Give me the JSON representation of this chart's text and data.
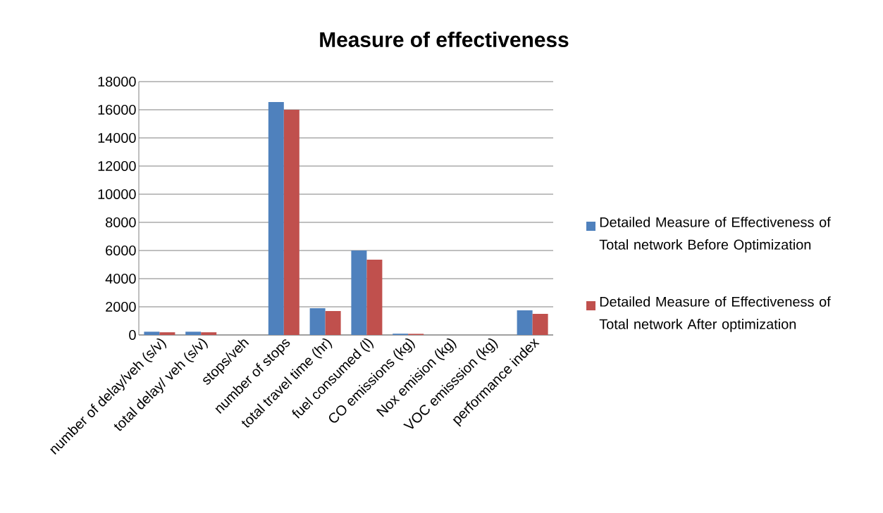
{
  "chart_data": {
    "type": "bar",
    "title": "Measure of effectiveness",
    "categories": [
      "number of delay/veh (s/v)",
      "total delay/ veh (s/v)",
      "stops/veh",
      "number of stops",
      "total travel time (hr)",
      "fuel consumed (l)",
      "CO emissions (kg)",
      "Nox emision (kg)",
      "VOC emisssion (kg)",
      "performance index"
    ],
    "series": [
      {
        "name": "Detailed Measure of Effectiveness of Total network Before Optimization",
        "color": "#4f81bd",
        "values": [
          230,
          230,
          0,
          16550,
          1900,
          6000,
          90,
          0,
          0,
          1750
        ]
      },
      {
        "name": "Detailed Measure of Effectiveness of Total network After optimization",
        "color": "#c0504d",
        "values": [
          190,
          190,
          0,
          16000,
          1700,
          5350,
          80,
          0,
          0,
          1500
        ]
      }
    ],
    "ylim": [
      0,
      18000
    ],
    "yticks": [
      0,
      2000,
      4000,
      6000,
      8000,
      10000,
      12000,
      14000,
      16000,
      18000
    ],
    "grid": "y",
    "legend": "right"
  }
}
